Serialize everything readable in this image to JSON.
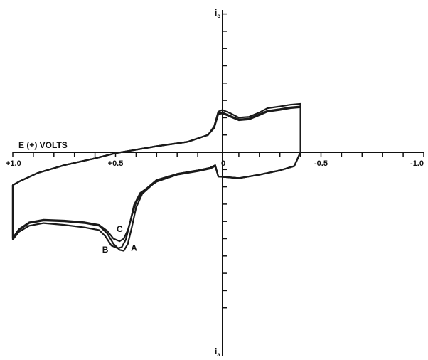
{
  "chart_data": {
    "type": "line",
    "title": "",
    "xlabel": "E (+) VOLTS",
    "ylabel_top": "i",
    "ylabel_top_sub": "c",
    "ylabel_bottom": "i",
    "ylabel_bottom_sub": "a",
    "x_reversed": true,
    "xlim": [
      1.0,
      -1.0
    ],
    "ylim": [
      -10,
      10
    ],
    "x_tick_step": 0.1,
    "y_tick_step": 1,
    "x_tick_labels": [
      {
        "x": 1.0,
        "text": "+1.0"
      },
      {
        "x": 0.5,
        "text": "+0.5"
      },
      {
        "x": 0.0,
        "text": "0"
      },
      {
        "x": -0.5,
        "text": "-0.5"
      },
      {
        "x": -1.0,
        "text": "-1.0"
      }
    ],
    "grid": false,
    "line_color": "#1a1a1a",
    "series": [
      {
        "name": "A",
        "label_at": {
          "x": 0.41,
          "y": -5.7
        },
        "points": [
          [
            1.0,
            -5.0
          ],
          [
            0.97,
            -4.5
          ],
          [
            0.92,
            -4.1
          ],
          [
            0.85,
            -3.95
          ],
          [
            0.75,
            -4.0
          ],
          [
            0.65,
            -4.1
          ],
          [
            0.58,
            -4.25
          ],
          [
            0.54,
            -4.7
          ],
          [
            0.51,
            -5.3
          ],
          [
            0.48,
            -5.65
          ],
          [
            0.46,
            -5.7
          ],
          [
            0.44,
            -5.3
          ],
          [
            0.42,
            -4.3
          ],
          [
            0.4,
            -3.2
          ],
          [
            0.37,
            -2.4
          ],
          [
            0.3,
            -1.65
          ],
          [
            0.2,
            -1.25
          ],
          [
            0.1,
            -1.05
          ],
          [
            0.04,
            -0.9
          ],
          [
            0.015,
            -0.75
          ],
          [
            0.0,
            -1.4
          ],
          [
            -0.1,
            -1.5
          ],
          [
            -0.2,
            -1.3
          ],
          [
            -0.3,
            -1.05
          ],
          [
            -0.37,
            -0.8
          ],
          [
            -0.4,
            0.0
          ],
          [
            -0.4,
            2.8
          ],
          [
            -0.35,
            2.75
          ],
          [
            -0.3,
            2.65
          ],
          [
            -0.24,
            2.55
          ],
          [
            -0.2,
            2.3
          ],
          [
            -0.15,
            2.05
          ],
          [
            -0.1,
            2.0
          ],
          [
            -0.06,
            2.25
          ],
          [
            -0.02,
            2.45
          ],
          [
            0.0,
            2.35
          ],
          [
            0.02,
            1.5
          ],
          [
            0.05,
            1.0
          ],
          [
            0.15,
            0.6
          ],
          [
            0.3,
            0.35
          ],
          [
            0.45,
            0.05
          ],
          [
            0.5,
            -0.05
          ],
          [
            0.6,
            -0.35
          ],
          [
            0.75,
            -0.75
          ],
          [
            0.88,
            -1.2
          ],
          [
            0.97,
            -1.7
          ],
          [
            1.0,
            -1.9
          ]
        ]
      },
      {
        "name": "B",
        "label_at": {
          "x": 0.55,
          "y": -5.8
        },
        "points": [
          [
            1.0,
            -5.05
          ],
          [
            0.97,
            -4.6
          ],
          [
            0.92,
            -4.25
          ],
          [
            0.85,
            -4.1
          ],
          [
            0.75,
            -4.2
          ],
          [
            0.65,
            -4.35
          ],
          [
            0.58,
            -4.5
          ],
          [
            0.55,
            -4.85
          ],
          [
            0.52,
            -5.4
          ],
          [
            0.49,
            -5.55
          ],
          [
            0.47,
            -5.5
          ],
          [
            0.45,
            -5.05
          ],
          [
            0.43,
            -4.1
          ],
          [
            0.41,
            -3.05
          ],
          [
            0.38,
            -2.35
          ],
          [
            0.3,
            -1.7
          ],
          [
            0.2,
            -1.3
          ],
          [
            0.1,
            -1.1
          ],
          [
            0.04,
            -0.95
          ],
          [
            0.015,
            -0.8
          ],
          [
            0.0,
            -1.4
          ],
          [
            -0.1,
            -1.5
          ],
          [
            -0.2,
            -1.3
          ],
          [
            -0.3,
            -1.05
          ],
          [
            -0.37,
            -0.8
          ],
          [
            -0.4,
            0.0
          ],
          [
            -0.4,
            2.6
          ],
          [
            -0.35,
            2.55
          ],
          [
            -0.3,
            2.45
          ],
          [
            -0.24,
            2.35
          ],
          [
            -0.2,
            2.15
          ],
          [
            -0.15,
            1.9
          ],
          [
            -0.1,
            1.85
          ],
          [
            -0.06,
            2.05
          ],
          [
            -0.02,
            2.25
          ],
          [
            0.0,
            2.2
          ],
          [
            0.02,
            1.4
          ],
          [
            0.05,
            1.0
          ],
          [
            0.15,
            0.6
          ],
          [
            0.3,
            0.35
          ],
          [
            0.45,
            0.05
          ],
          [
            0.5,
            -0.05
          ],
          [
            0.6,
            -0.35
          ],
          [
            0.75,
            -0.75
          ],
          [
            0.88,
            -1.2
          ],
          [
            0.97,
            -1.7
          ],
          [
            1.0,
            -1.9
          ]
        ]
      },
      {
        "name": "C",
        "label_at": {
          "x": 0.48,
          "y": -4.6
        },
        "points": [
          [
            1.0,
            -4.95
          ],
          [
            0.97,
            -4.45
          ],
          [
            0.92,
            -4.05
          ],
          [
            0.85,
            -3.9
          ],
          [
            0.75,
            -3.95
          ],
          [
            0.65,
            -4.05
          ],
          [
            0.58,
            -4.2
          ],
          [
            0.54,
            -4.55
          ],
          [
            0.51,
            -5.0
          ],
          [
            0.48,
            -5.15
          ],
          [
            0.46,
            -5.0
          ],
          [
            0.44,
            -4.5
          ],
          [
            0.42,
            -3.65
          ],
          [
            0.4,
            -2.9
          ],
          [
            0.37,
            -2.3
          ],
          [
            0.3,
            -1.6
          ],
          [
            0.2,
            -1.25
          ],
          [
            0.1,
            -1.05
          ],
          [
            0.04,
            -0.9
          ],
          [
            0.015,
            -0.75
          ],
          [
            0.0,
            -1.4
          ],
          [
            -0.1,
            -1.5
          ],
          [
            -0.2,
            -1.3
          ],
          [
            -0.3,
            -1.05
          ],
          [
            -0.37,
            -0.8
          ],
          [
            -0.4,
            0.0
          ],
          [
            -0.4,
            2.65
          ],
          [
            -0.35,
            2.6
          ],
          [
            -0.3,
            2.5
          ],
          [
            -0.24,
            2.4
          ],
          [
            -0.2,
            2.2
          ],
          [
            -0.15,
            1.95
          ],
          [
            -0.1,
            1.9
          ],
          [
            -0.06,
            2.1
          ],
          [
            -0.02,
            2.3
          ],
          [
            0.0,
            2.25
          ],
          [
            0.02,
            1.45
          ],
          [
            0.05,
            1.0
          ],
          [
            0.15,
            0.6
          ],
          [
            0.3,
            0.35
          ],
          [
            0.45,
            0.05
          ],
          [
            0.5,
            -0.05
          ],
          [
            0.6,
            -0.35
          ],
          [
            0.75,
            -0.75
          ],
          [
            0.88,
            -1.2
          ],
          [
            0.97,
            -1.7
          ],
          [
            1.0,
            -1.9
          ]
        ]
      }
    ]
  }
}
